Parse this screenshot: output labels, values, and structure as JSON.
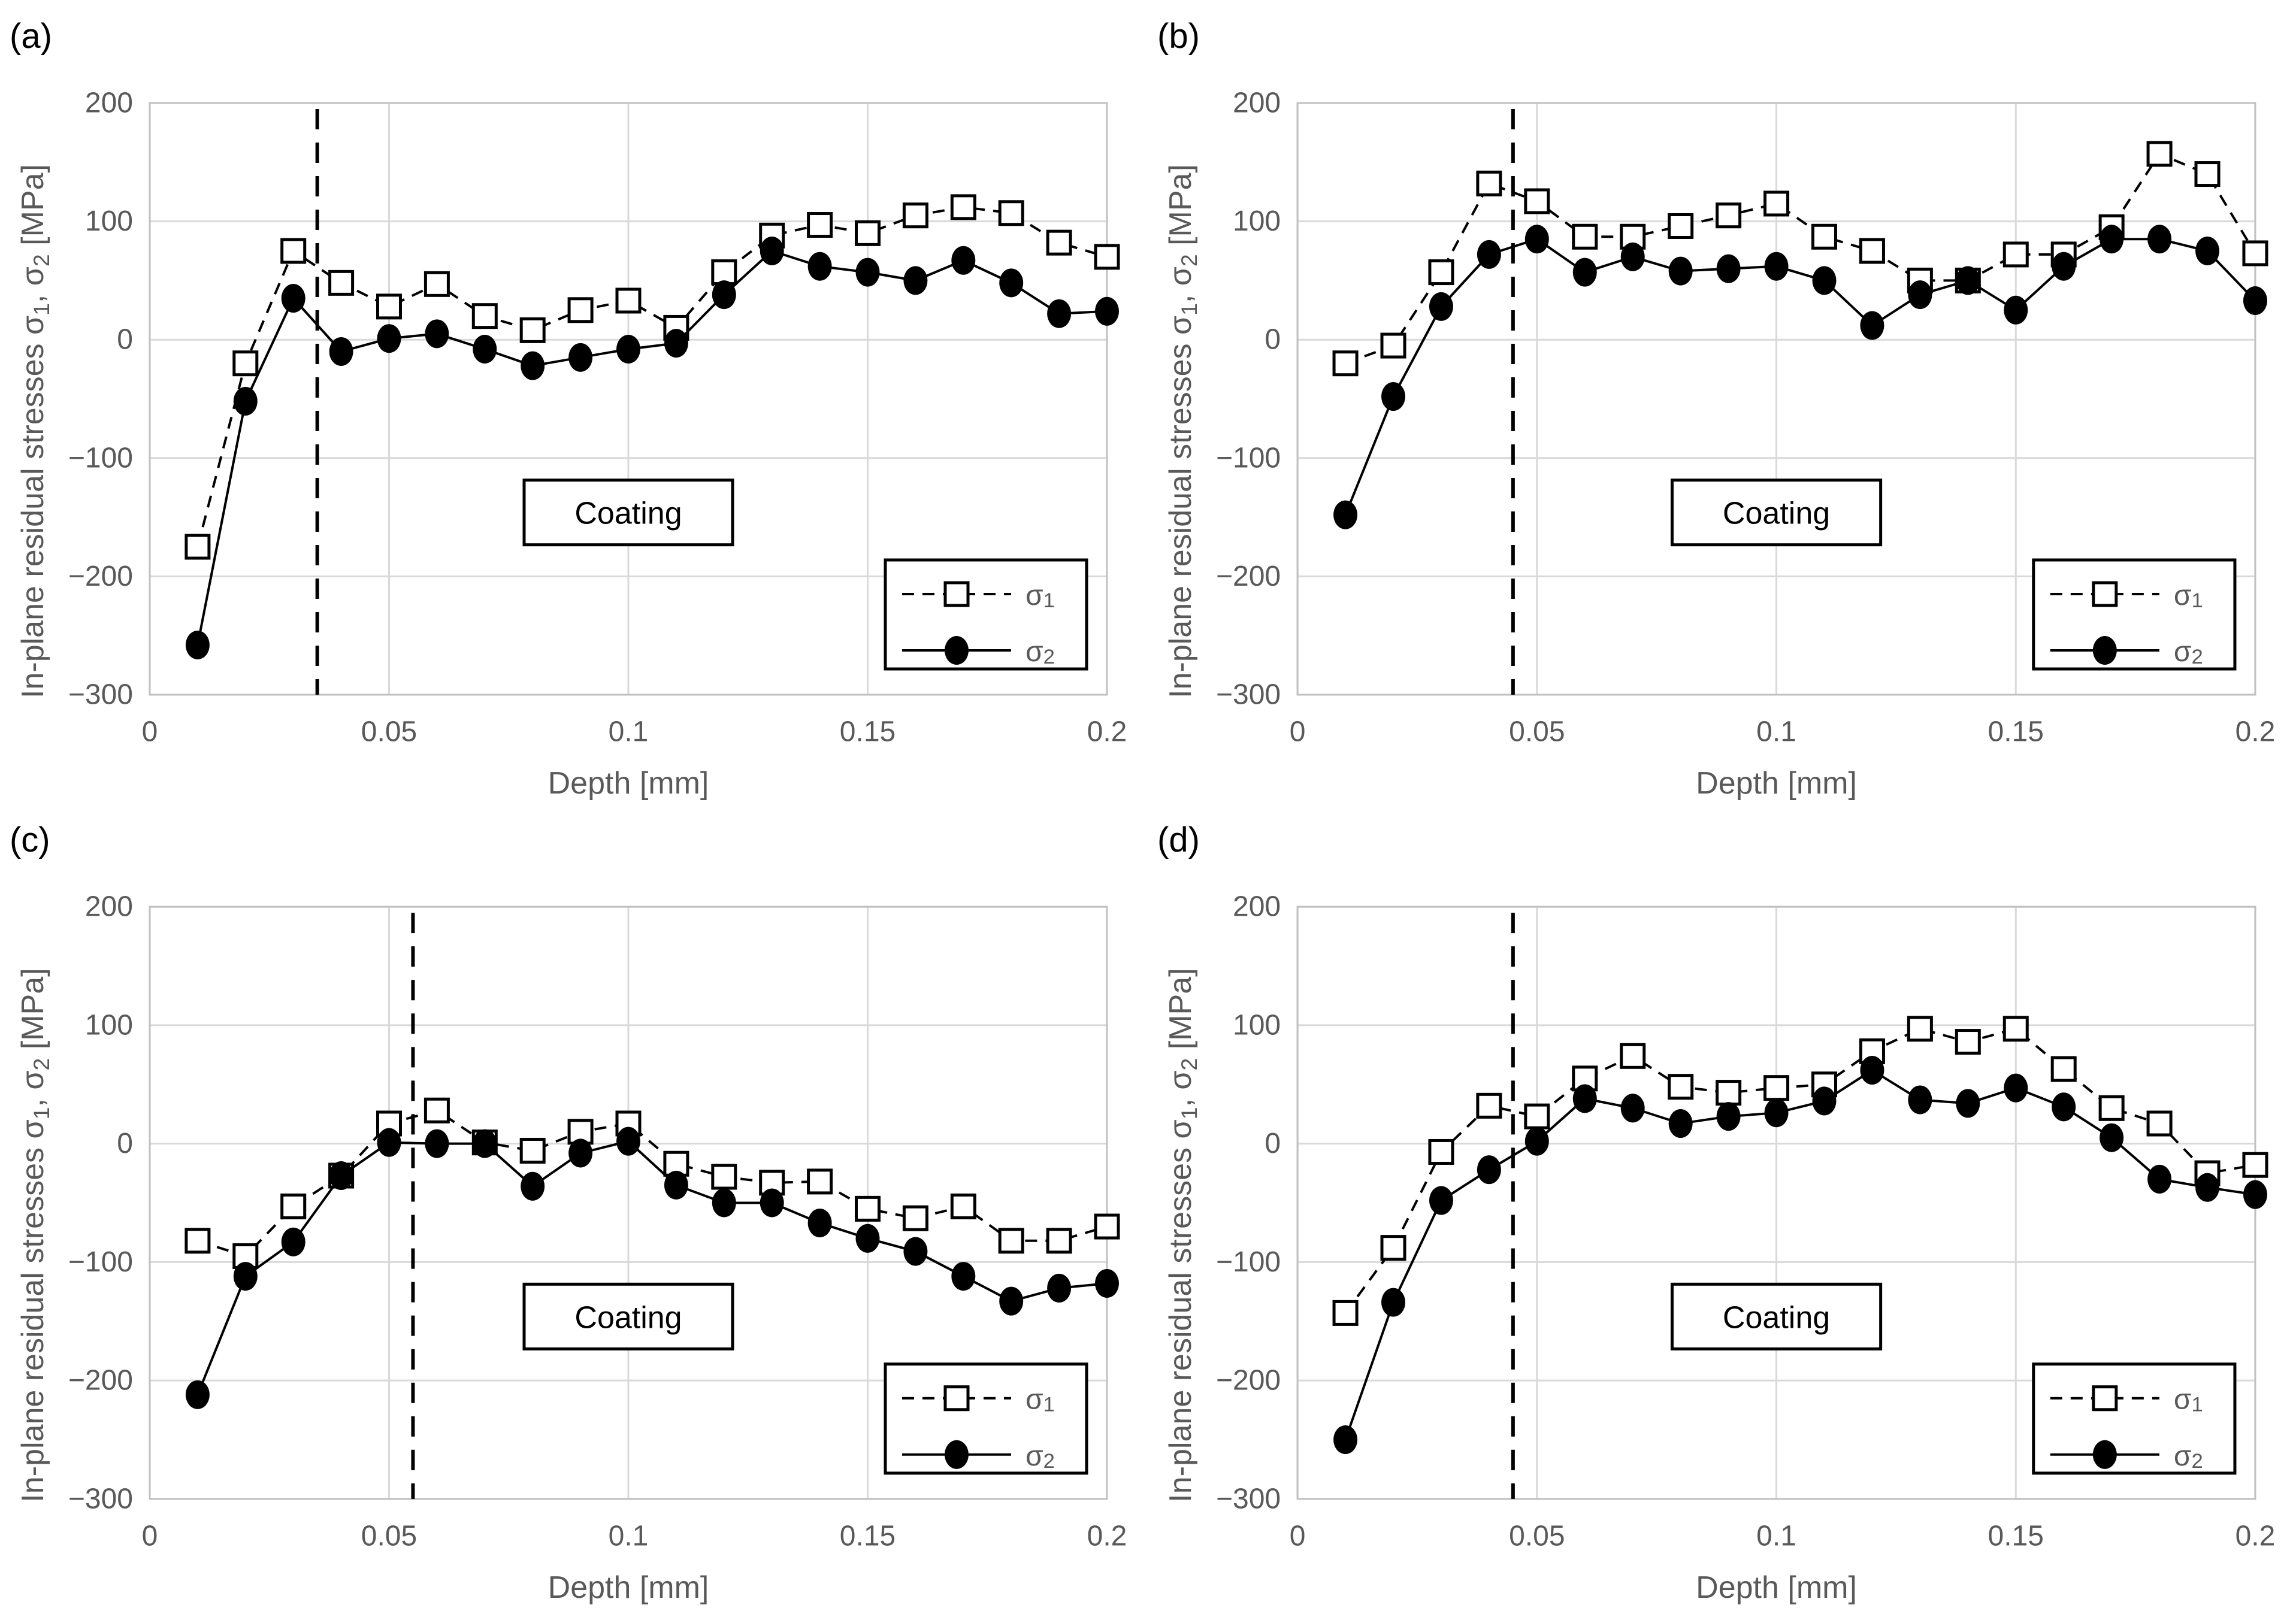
{
  "figure": {
    "background": "#ffffff",
    "panel_count": 4
  },
  "styles": {
    "text_color": "#595959",
    "grid_color": "#d9d9d9",
    "axis_color": "#c0c0c0",
    "series_color": "#000000",
    "panel_letter_color": "#000000",
    "annotation_text_color": "#000000",
    "annotation_fill": "#ffffff",
    "legend_fill": "#ffffff",
    "legend_border": "#000000"
  },
  "chart_data": [
    {
      "id": "a",
      "type": "line",
      "panel_label": "(a)",
      "xlabel": "Depth [mm]",
      "ylabel": "In-plane residual stresses σ₁, σ₂ [MPa]",
      "xlim": [
        0,
        0.2
      ],
      "ylim": [
        -300,
        200
      ],
      "xticks": [
        0,
        0.05,
        0.1,
        0.15,
        0.2
      ],
      "xtick_labels": [
        "0",
        "0.05",
        "0.1",
        "0.15",
        "0.2"
      ],
      "yticks": [
        200,
        100,
        0,
        -100,
        -200,
        -300
      ],
      "ytick_labels": [
        "200",
        "100",
        "0",
        "−100",
        "−200",
        "−300"
      ],
      "grid": true,
      "annotation": "Coating",
      "interface_line_x": 0.035,
      "legend": {
        "position": "lower-right",
        "entries": [
          "σ₁",
          "σ₂"
        ]
      },
      "x": [
        0.01,
        0.02,
        0.03,
        0.04,
        0.05,
        0.06,
        0.07,
        0.08,
        0.09,
        0.1,
        0.11,
        0.12,
        0.13,
        0.14,
        0.15,
        0.16,
        0.17,
        0.18,
        0.19,
        0.2
      ],
      "series": [
        {
          "name": "σ₁",
          "line": "dashed",
          "marker": "open-square",
          "values": [
            -175,
            -20,
            75,
            48,
            28,
            47,
            20,
            8,
            25,
            33,
            10,
            57,
            88,
            97,
            90,
            105,
            112,
            107,
            82,
            70
          ]
        },
        {
          "name": "σ₂",
          "line": "solid",
          "marker": "filled-circle",
          "values": [
            -258,
            -52,
            35,
            -10,
            1,
            5,
            -8,
            -22,
            -15,
            -8,
            -3,
            38,
            75,
            62,
            57,
            50,
            67,
            48,
            22,
            24
          ]
        }
      ]
    },
    {
      "id": "b",
      "type": "line",
      "panel_label": "(b)",
      "xlabel": "Depth [mm]",
      "ylabel": "In-plane residual stresses σ₁, σ₂ [MPa]",
      "xlim": [
        0,
        0.2
      ],
      "ylim": [
        -300,
        200
      ],
      "xticks": [
        0,
        0.05,
        0.1,
        0.15,
        0.2
      ],
      "xtick_labels": [
        "0",
        "0.05",
        "0.1",
        "0.15",
        "0.2"
      ],
      "yticks": [
        200,
        100,
        0,
        -100,
        -200,
        -300
      ],
      "ytick_labels": [
        "200",
        "100",
        "0",
        "−100",
        "−200",
        "−300"
      ],
      "grid": true,
      "annotation": "Coating",
      "interface_line_x": 0.045,
      "legend": {
        "position": "lower-right",
        "entries": [
          "σ₁",
          "σ₂"
        ]
      },
      "x": [
        0.01,
        0.02,
        0.03,
        0.04,
        0.05,
        0.06,
        0.07,
        0.08,
        0.09,
        0.1,
        0.11,
        0.12,
        0.13,
        0.14,
        0.15,
        0.16,
        0.17,
        0.18,
        0.19,
        0.2
      ],
      "series": [
        {
          "name": "σ₁",
          "line": "dashed",
          "marker": "open-square",
          "values": [
            -20,
            -5,
            57,
            132,
            117,
            87,
            87,
            96,
            105,
            115,
            87,
            75,
            50,
            50,
            72,
            72,
            95,
            157,
            140,
            73
          ]
        },
        {
          "name": "σ₂",
          "line": "solid",
          "marker": "filled-circle",
          "values": [
            -148,
            -48,
            28,
            72,
            85,
            57,
            70,
            58,
            60,
            62,
            50,
            12,
            38,
            50,
            25,
            62,
            85,
            85,
            75,
            33
          ]
        }
      ]
    },
    {
      "id": "c",
      "type": "line",
      "panel_label": "(c)",
      "xlabel": "Depth [mm]",
      "ylabel": "In-plane residual stresses σ₁, σ₂ [MPa]",
      "xlim": [
        0,
        0.2
      ],
      "ylim": [
        -300,
        200
      ],
      "xticks": [
        0,
        0.05,
        0.1,
        0.15,
        0.2
      ],
      "xtick_labels": [
        "0",
        "0.05",
        "0.1",
        "0.15",
        "0.2"
      ],
      "yticks": [
        200,
        100,
        0,
        -100,
        -200,
        -300
      ],
      "ytick_labels": [
        "200",
        "100",
        "0",
        "−100",
        "−200",
        "−300"
      ],
      "grid": true,
      "annotation": "Coating",
      "interface_line_x": 0.055,
      "legend": {
        "position": "lower-right",
        "entries": [
          "σ₁",
          "σ₂"
        ]
      },
      "x": [
        0.01,
        0.02,
        0.03,
        0.04,
        0.05,
        0.06,
        0.07,
        0.08,
        0.09,
        0.1,
        0.11,
        0.12,
        0.13,
        0.14,
        0.15,
        0.16,
        0.17,
        0.18,
        0.19,
        0.2
      ],
      "series": [
        {
          "name": "σ₁",
          "line": "dashed",
          "marker": "open-square",
          "values": [
            -82,
            -95,
            -53,
            -27,
            17,
            28,
            1,
            -6,
            10,
            17,
            -17,
            -28,
            -33,
            -32,
            -55,
            -63,
            -53,
            -82,
            -82,
            -70
          ]
        },
        {
          "name": "σ₂",
          "line": "solid",
          "marker": "filled-circle",
          "values": [
            -212,
            -112,
            -83,
            -27,
            1,
            0,
            0,
            -36,
            -8,
            2,
            -35,
            -50,
            -50,
            -67,
            -80,
            -91,
            -112,
            -133,
            -122,
            -118
          ]
        }
      ]
    },
    {
      "id": "d",
      "type": "line",
      "panel_label": "(d)",
      "xlabel": "Depth [mm]",
      "ylabel": "In-plane residual stresses σ₁, σ₂ [MPa]",
      "xlim": [
        0,
        0.2
      ],
      "ylim": [
        -300,
        200
      ],
      "xticks": [
        0,
        0.05,
        0.1,
        0.15,
        0.2
      ],
      "xtick_labels": [
        "0",
        "0.05",
        "0.1",
        "0.15",
        "0.2"
      ],
      "yticks": [
        200,
        100,
        0,
        -100,
        -200,
        -300
      ],
      "ytick_labels": [
        "200",
        "100",
        "0",
        "−100",
        "−200",
        "−300"
      ],
      "grid": true,
      "annotation": "Coating",
      "interface_line_x": 0.045,
      "legend": {
        "position": "lower-right",
        "entries": [
          "σ₁",
          "σ₂"
        ]
      },
      "x": [
        0.01,
        0.02,
        0.03,
        0.04,
        0.05,
        0.06,
        0.07,
        0.08,
        0.09,
        0.1,
        0.11,
        0.12,
        0.13,
        0.14,
        0.15,
        0.16,
        0.17,
        0.18,
        0.19,
        0.2
      ],
      "series": [
        {
          "name": "σ₁",
          "line": "dashed",
          "marker": "open-square",
          "values": [
            -143,
            -88,
            -7,
            32,
            23,
            55,
            74,
            48,
            43,
            47,
            50,
            78,
            97,
            86,
            97,
            63,
            30,
            17,
            -25,
            -18
          ]
        },
        {
          "name": "σ₂",
          "line": "solid",
          "marker": "filled-circle",
          "values": [
            -250,
            -134,
            -48,
            -22,
            2,
            38,
            30,
            17,
            23,
            26,
            36,
            62,
            37,
            34,
            47,
            31,
            5,
            -30,
            -37,
            -43
          ]
        }
      ]
    }
  ]
}
